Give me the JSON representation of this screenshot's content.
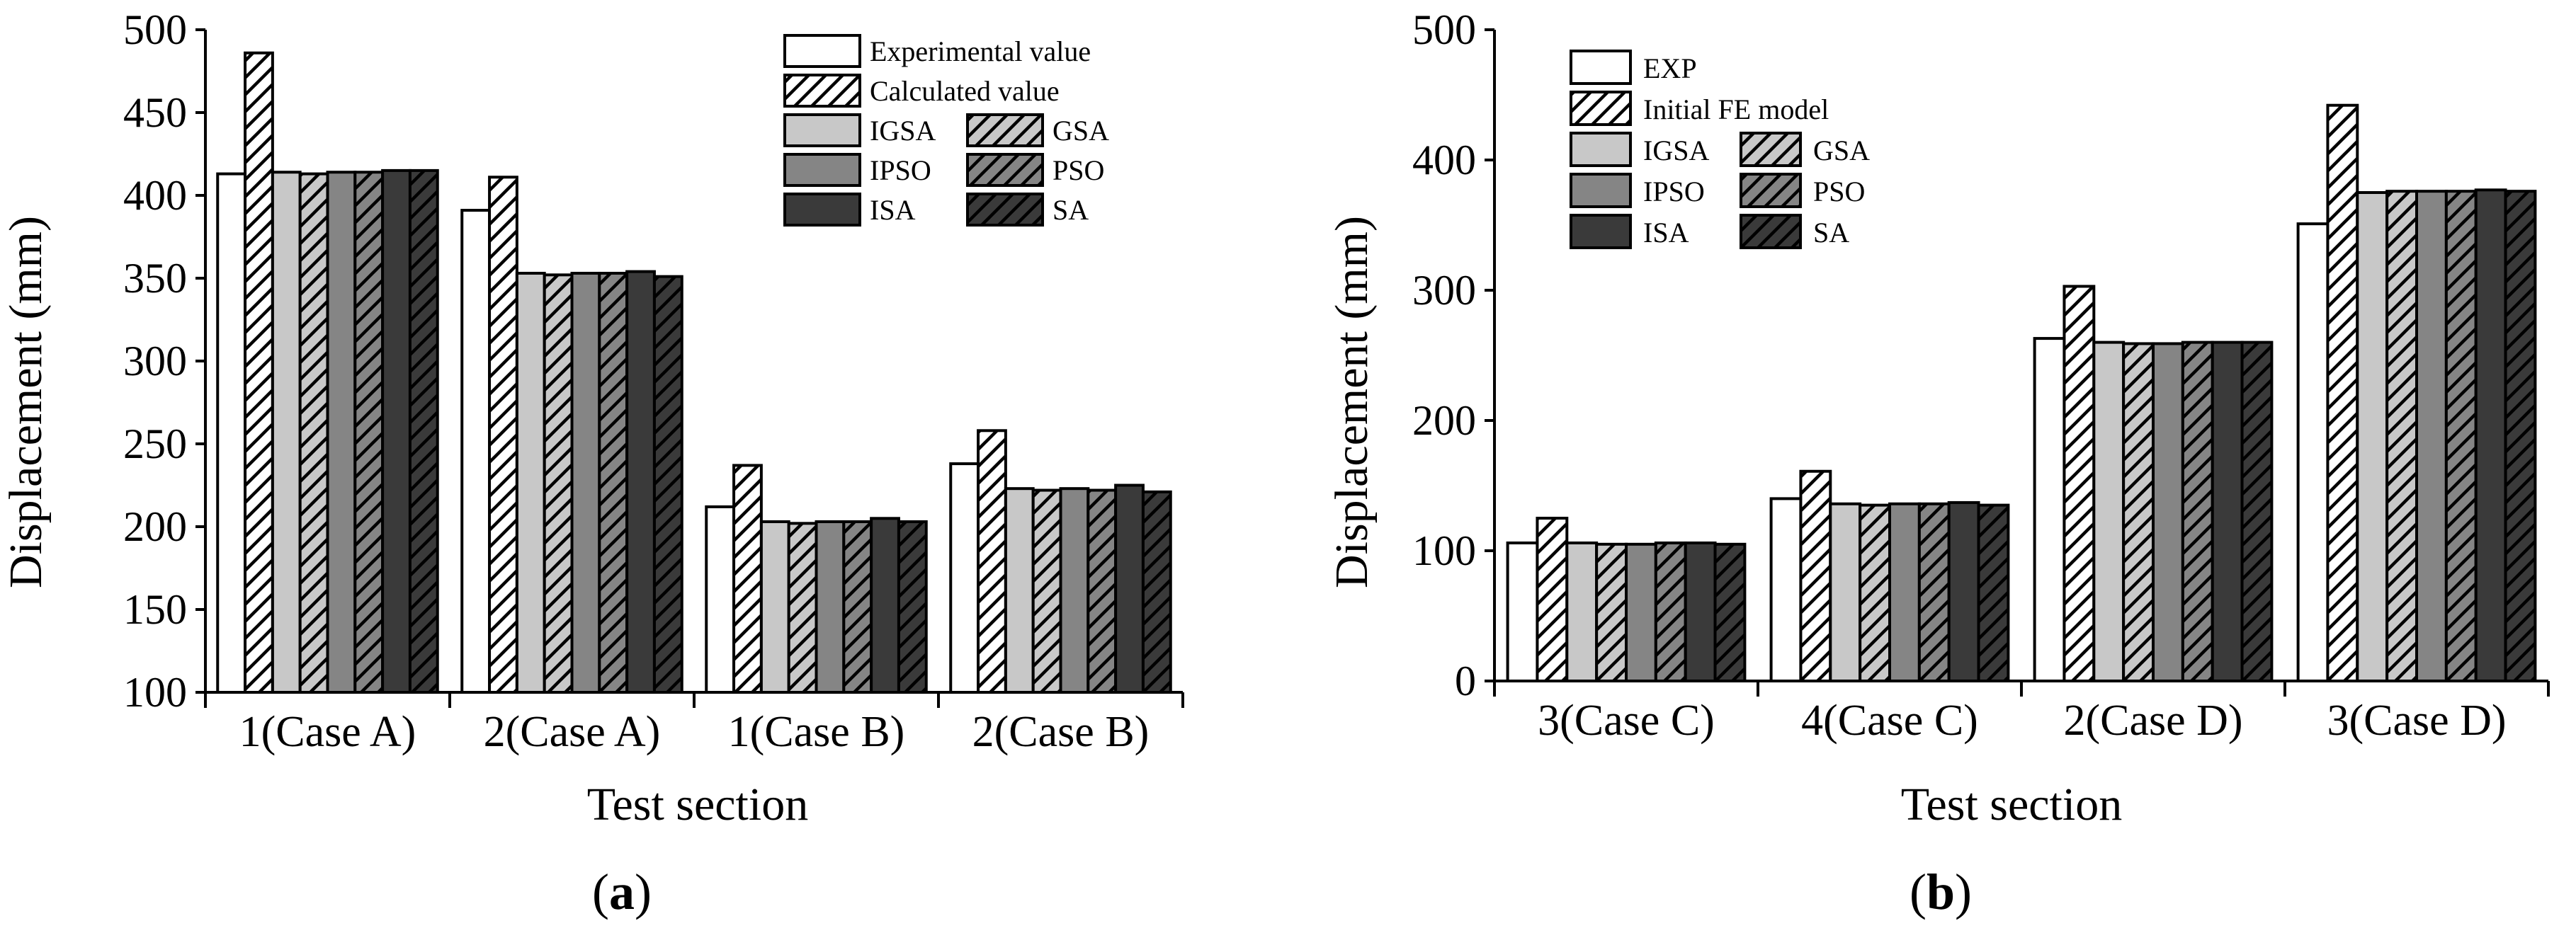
{
  "colors": {
    "white": "#ffffff",
    "light": "#c8c8c8",
    "medium": "#858585",
    "dark": "#3a3a3a",
    "outline": "#000000"
  },
  "chart_data": [
    {
      "type": "bar",
      "panel_label": "a",
      "xlabel": "Test section",
      "ylabel": "Displacement (mm)",
      "ylim": [
        100,
        500
      ],
      "yticks": [
        100,
        150,
        200,
        250,
        300,
        350,
        400,
        450,
        500
      ],
      "categories": [
        "1(Case A)",
        "2(Case A)",
        "1(Case B)",
        "2(Case B)"
      ],
      "legend_position": "top-right",
      "series": [
        {
          "name": "Experimental value",
          "fill": "white",
          "hatch": false,
          "values": [
            413,
            391,
            212,
            238
          ]
        },
        {
          "name": "Calculated value",
          "fill": "white",
          "hatch": true,
          "values": [
            486,
            411,
            237,
            258
          ]
        },
        {
          "name": "IGSA",
          "fill": "light",
          "hatch": false,
          "values": [
            414,
            353,
            203,
            223
          ]
        },
        {
          "name": "GSA",
          "fill": "light",
          "hatch": true,
          "values": [
            413,
            352,
            202,
            222
          ]
        },
        {
          "name": "IPSO",
          "fill": "medium",
          "hatch": false,
          "values": [
            414,
            353,
            203,
            223
          ]
        },
        {
          "name": "PSO",
          "fill": "medium",
          "hatch": true,
          "values": [
            414,
            353,
            203,
            222
          ]
        },
        {
          "name": "ISA",
          "fill": "dark",
          "hatch": false,
          "values": [
            415,
            354,
            205,
            225
          ]
        },
        {
          "name": "SA",
          "fill": "dark",
          "hatch": true,
          "values": [
            415,
            351,
            203,
            221
          ]
        }
      ]
    },
    {
      "type": "bar",
      "panel_label": "b",
      "xlabel": "Test section",
      "ylabel": "Displacement (mm)",
      "ylim": [
        0,
        500
      ],
      "yticks": [
        0,
        100,
        200,
        300,
        400,
        500
      ],
      "categories": [
        "3(Case C)",
        "4(Case C)",
        "2(Case D)",
        "3(Case D)"
      ],
      "legend_position": "top-left",
      "series": [
        {
          "name": "EXP",
          "fill": "white",
          "hatch": false,
          "values": [
            106,
            140,
            263,
            351
          ]
        },
        {
          "name": "Initial FE model",
          "fill": "white",
          "hatch": true,
          "values": [
            125,
            161,
            303,
            442
          ]
        },
        {
          "name": "IGSA",
          "fill": "light",
          "hatch": false,
          "values": [
            106,
            136,
            260,
            375
          ]
        },
        {
          "name": "GSA",
          "fill": "light",
          "hatch": true,
          "values": [
            105,
            135,
            259,
            376
          ]
        },
        {
          "name": "IPSO",
          "fill": "medium",
          "hatch": false,
          "values": [
            105,
            136,
            259,
            376
          ]
        },
        {
          "name": "PSO",
          "fill": "medium",
          "hatch": true,
          "values": [
            106,
            136,
            260,
            376
          ]
        },
        {
          "name": "ISA",
          "fill": "dark",
          "hatch": false,
          "values": [
            106,
            137,
            260,
            377
          ]
        },
        {
          "name": "SA",
          "fill": "dark",
          "hatch": true,
          "values": [
            105,
            135,
            260,
            376
          ]
        }
      ]
    }
  ]
}
